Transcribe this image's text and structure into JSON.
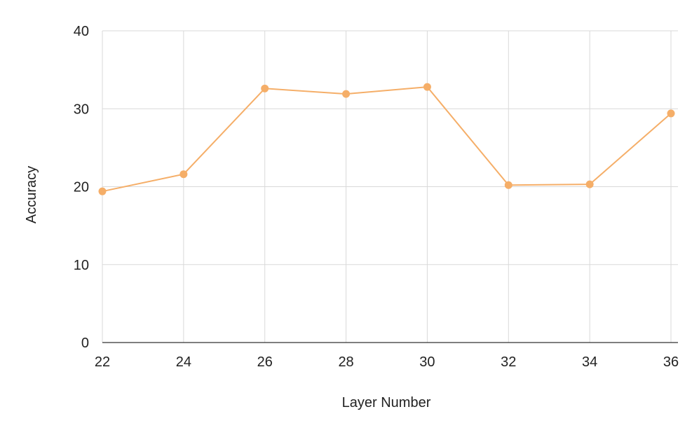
{
  "chart_data": {
    "type": "line",
    "title": "",
    "xlabel": "Layer Number",
    "ylabel": "Accuracy",
    "x": [
      22,
      24,
      26,
      28,
      30,
      32,
      34,
      36
    ],
    "xticks": [
      "22",
      "24",
      "26",
      "28",
      "30",
      "32",
      "34",
      "36"
    ],
    "xlim": [
      22,
      36
    ],
    "ylim": [
      0,
      40
    ],
    "yticks": [
      "0",
      "10",
      "20",
      "30",
      "40"
    ],
    "grid": true,
    "legend": "none",
    "series": [
      {
        "values": [
          19.4,
          21.6,
          32.6,
          31.9,
          32.8,
          20.2,
          20.3,
          29.4
        ],
        "color": "#F5AE68"
      }
    ],
    "colors": {
      "grid": "#d9d9d9",
      "axis": "#333333",
      "text": "#222222"
    }
  }
}
